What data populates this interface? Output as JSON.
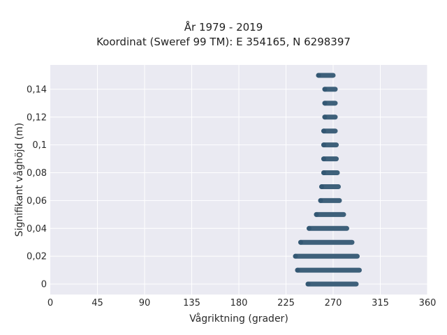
{
  "chart_data": {
    "type": "scatter",
    "title_line1": "År 1979 - 2019",
    "title_line2": "Koordinat (Sweref 99 TM): E 354165, N 6298397",
    "xlabel": "Vågriktning (grader)",
    "ylabel": "Signifikant våghöjd (m)",
    "xlim": [
      0,
      360
    ],
    "ylim": [
      -0.0075,
      0.1575
    ],
    "xticks": [
      0,
      45,
      90,
      135,
      180,
      225,
      270,
      315,
      360
    ],
    "xtick_labels": [
      "0",
      "45",
      "90",
      "135",
      "180",
      "225",
      "270",
      "315",
      "360"
    ],
    "yticks": [
      0,
      0.02,
      0.04,
      0.06,
      0.08,
      0.1,
      0.12,
      0.14
    ],
    "ytick_labels": [
      "0",
      "0,02",
      "0,04",
      "0,06",
      "0,08",
      "0,1",
      "0,12",
      "0,14"
    ],
    "grid": true,
    "background": "#eaeaf2",
    "marker_color": "#2f5470",
    "bands": [
      {
        "y": 0.0,
        "x_min": 244,
        "x_max": 294
      },
      {
        "y": 0.01,
        "x_min": 234,
        "x_max": 297
      },
      {
        "y": 0.02,
        "x_min": 232,
        "x_max": 295
      },
      {
        "y": 0.03,
        "x_min": 237,
        "x_max": 290
      },
      {
        "y": 0.04,
        "x_min": 245,
        "x_max": 285
      },
      {
        "y": 0.05,
        "x_min": 252,
        "x_max": 282
      },
      {
        "y": 0.06,
        "x_min": 256,
        "x_max": 278
      },
      {
        "y": 0.07,
        "x_min": 257,
        "x_max": 277
      },
      {
        "y": 0.08,
        "x_min": 259,
        "x_max": 276
      },
      {
        "y": 0.09,
        "x_min": 259,
        "x_max": 275
      },
      {
        "y": 0.1,
        "x_min": 259,
        "x_max": 275
      },
      {
        "y": 0.11,
        "x_min": 259,
        "x_max": 274
      },
      {
        "y": 0.12,
        "x_min": 260,
        "x_max": 274
      },
      {
        "y": 0.13,
        "x_min": 260,
        "x_max": 274
      },
      {
        "y": 0.14,
        "x_min": 260,
        "x_max": 274
      },
      {
        "y": 0.15,
        "x_min": 254,
        "x_max": 272
      }
    ]
  }
}
